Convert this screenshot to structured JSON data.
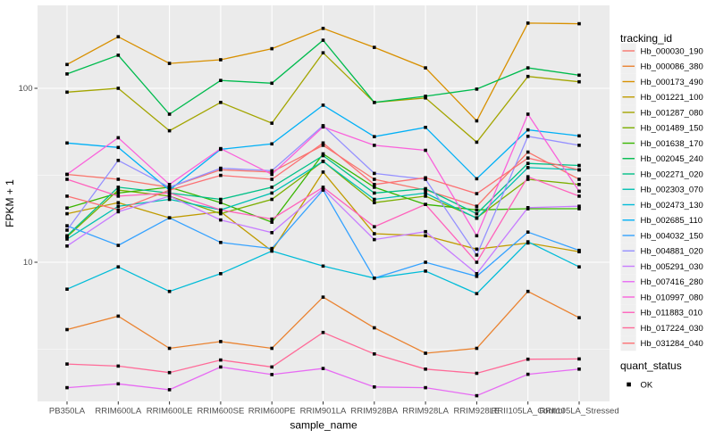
{
  "chart_data": {
    "type": "line",
    "title": "",
    "xlabel": "sample_name",
    "ylabel": "FPKM + 1",
    "y_scale": "log10",
    "ylim": [
      1.58,
      300
    ],
    "y_ticks": [
      10,
      100
    ],
    "y_minor_gridlines": [
      3.162,
      31.62
    ],
    "grid": "on",
    "panel_bg": "#EBEBEB",
    "gridline_color": "#FFFFFF",
    "point_color": "#000000",
    "tick_label_color": "#4D4D4D",
    "legend_position": "right",
    "legend_title": "tracking_id",
    "categories": [
      "PB350LA",
      "RRIM600LA",
      "RRIM600LE",
      "RRIM600SE",
      "RRIM600PE",
      "RRIM901LA",
      "RRIM928BA",
      "RRIM928LA",
      "RRIM928LE",
      "RRII105LA_Control",
      "RRII105LA_Stressed"
    ],
    "series": [
      {
        "name": "Hb_000030_190",
        "color": "#F8766D",
        "values": [
          32,
          30,
          27,
          34,
          33,
          47,
          30,
          26,
          21,
          43,
          30
        ]
      },
      {
        "name": "Hb_000086_380",
        "color": "#EA8331",
        "values": [
          4.1,
          4.9,
          3.2,
          3.5,
          3.2,
          6.3,
          4.2,
          3.0,
          3.2,
          6.8,
          4.8
        ]
      },
      {
        "name": "Hb_000173_490",
        "color": "#D89000",
        "values": [
          137,
          198,
          139,
          146,
          169,
          221,
          172,
          131,
          65,
          237,
          235
        ]
      },
      {
        "name": "Hb_001221_100",
        "color": "#C09B00",
        "values": [
          19,
          22,
          18,
          19.5,
          11.6,
          33,
          14.6,
          14.2,
          11.9,
          12.9,
          11.5
        ]
      },
      {
        "name": "Hb_001287_080",
        "color": "#A3A500",
        "values": [
          95,
          100,
          57,
          83,
          63,
          160,
          83,
          88,
          49,
          117,
          109
        ]
      },
      {
        "name": "Hb_001489_150",
        "color": "#7CAE00",
        "values": [
          14,
          26,
          24,
          19,
          23,
          38,
          22,
          24,
          18,
          30,
          28
        ]
      },
      {
        "name": "Hb_001638_170",
        "color": "#39B600",
        "values": [
          20.5,
          25,
          27,
          22,
          17,
          42,
          27,
          21.5,
          20,
          20.3,
          20.3
        ]
      },
      {
        "name": "Hb_002045_240",
        "color": "#00BB4E",
        "values": [
          121,
          155,
          71,
          111,
          107,
          189,
          83,
          90,
          99,
          131,
          119
        ]
      },
      {
        "name": "Hb_002271_020",
        "color": "#00C087",
        "values": [
          14.2,
          27,
          25,
          23,
          27,
          41,
          25,
          26.5,
          19,
          37,
          36
        ]
      },
      {
        "name": "Hb_002303_070",
        "color": "#00C0B2",
        "values": [
          13.6,
          21,
          23,
          20,
          25,
          38,
          23,
          25,
          17.9,
          35,
          34
        ]
      },
      {
        "name": "Hb_002473_130",
        "color": "#00BCD8",
        "values": [
          7.0,
          9.4,
          6.8,
          8.6,
          11.6,
          9.5,
          8.1,
          8.9,
          6.6,
          13.1,
          9.4
        ]
      },
      {
        "name": "Hb_002685_110",
        "color": "#00B0F6",
        "values": [
          48.5,
          45.7,
          26,
          44.6,
          47.9,
          80,
          52.7,
          59.6,
          30.2,
          57.7,
          53.3
        ]
      },
      {
        "name": "Hb_004032_150",
        "color": "#35A2FF",
        "values": [
          16.2,
          12.5,
          18,
          13,
          12,
          26,
          8.1,
          10,
          8.3,
          14.9,
          11.7
        ]
      },
      {
        "name": "Hb_004881_020",
        "color": "#9590FF",
        "values": [
          15.3,
          38.5,
          27,
          34.7,
          33.6,
          61,
          32.4,
          30,
          11,
          53,
          47
        ]
      },
      {
        "name": "Hb_005291_030",
        "color": "#C77CFF",
        "values": [
          12.4,
          19.5,
          24,
          17.5,
          14.8,
          26.4,
          13.5,
          15,
          8.6,
          20.6,
          21
        ]
      },
      {
        "name": "Hb_007416_280",
        "color": "#E76BF3",
        "values": [
          1.9,
          2.0,
          1.85,
          2.5,
          2.26,
          2.45,
          1.92,
          1.9,
          1.71,
          2.27,
          2.43
        ]
      },
      {
        "name": "Hb_010997_080",
        "color": "#FA62DB",
        "values": [
          32,
          52,
          28,
          45,
          32,
          60,
          47,
          44,
          14.2,
          71,
          25.6
        ]
      },
      {
        "name": "Hb_011883_010",
        "color": "#FF62BC",
        "values": [
          30,
          24,
          25,
          20,
          17.7,
          27,
          16,
          21.5,
          10,
          31,
          24
        ]
      },
      {
        "name": "Hb_017224_030",
        "color": "#FF6A98",
        "values": [
          2.6,
          2.53,
          2.32,
          2.74,
          2.5,
          3.95,
          2.97,
          2.43,
          2.3,
          2.77,
          2.78
        ]
      },
      {
        "name": "Hb_031284_040",
        "color": "#FC7173",
        "values": [
          24,
          20,
          26,
          31.6,
          30,
          48.5,
          28,
          30.6,
          24.8,
          39.7,
          34
        ]
      }
    ],
    "quant_legend": {
      "title": "quant_status",
      "items": [
        {
          "label": "OK",
          "shape": "black-square"
        }
      ]
    }
  }
}
